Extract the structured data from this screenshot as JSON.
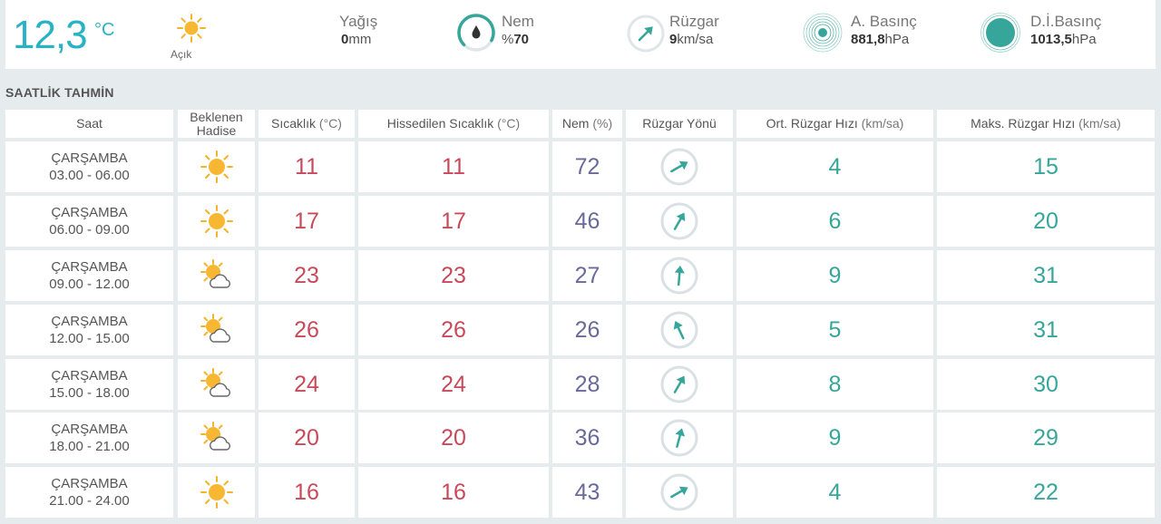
{
  "current": {
    "temperature": "12,3",
    "unit": "°C",
    "condition": "Açık",
    "condition_icon": "sun-icon",
    "precip": {
      "label": "Yağış",
      "value": "0",
      "unit": "mm"
    },
    "humidity": {
      "label": "Nem",
      "prefix": "%",
      "value": "70",
      "level": 0.7
    },
    "wind": {
      "label": "Rüzgar",
      "value": "9",
      "unit": "km/sa"
    },
    "pressure_a": {
      "label": "A. Basınç",
      "value": "881,8",
      "unit": "hPa"
    },
    "pressure_di": {
      "label": "D.İ.Basınç",
      "value": "1013,5",
      "unit": "hPa"
    }
  },
  "hourly": {
    "title": "SAATLİK TAHMİN",
    "headers": {
      "time": "Saat",
      "event_1": "Beklenen",
      "event_2": "Hadise",
      "temp": "Sıcaklık",
      "temp_unit": "(°C)",
      "feels": "Hissedilen Sıcaklık",
      "feels_unit": "(°C)",
      "humidity": "Nem",
      "humidity_unit": "(%)",
      "wind_dir": "Rüzgar Yönü",
      "avg_wind": "Ort. Rüzgar Hızı",
      "avg_wind_unit": "(km/sa)",
      "max_wind": "Maks. Rüzgar Hızı",
      "max_wind_unit": "(km/sa)"
    },
    "rows": [
      {
        "day": "ÇARŞAMBA",
        "range": "03.00 - 06.00",
        "icon": "sun-icon",
        "temp": "11",
        "feels": "11",
        "humidity": "72",
        "wind_dir_deg": 240,
        "avg_wind": "4",
        "max_wind": "15"
      },
      {
        "day": "ÇARŞAMBA",
        "range": "06.00 - 09.00",
        "icon": "sun-icon",
        "temp": "17",
        "feels": "17",
        "humidity": "46",
        "wind_dir_deg": 210,
        "avg_wind": "6",
        "max_wind": "20"
      },
      {
        "day": "ÇARŞAMBA",
        "range": "09.00 - 12.00",
        "icon": "partly-cloudy-icon",
        "temp": "23",
        "feels": "23",
        "humidity": "27",
        "wind_dir_deg": 185,
        "avg_wind": "9",
        "max_wind": "31"
      },
      {
        "day": "ÇARŞAMBA",
        "range": "12.00 - 15.00",
        "icon": "partly-cloudy-icon",
        "temp": "26",
        "feels": "26",
        "humidity": "26",
        "wind_dir_deg": 155,
        "avg_wind": "5",
        "max_wind": "31"
      },
      {
        "day": "ÇARŞAMBA",
        "range": "15.00 - 18.00",
        "icon": "partly-cloudy-icon",
        "temp": "24",
        "feels": "24",
        "humidity": "28",
        "wind_dir_deg": 210,
        "avg_wind": "8",
        "max_wind": "30"
      },
      {
        "day": "ÇARŞAMBA",
        "range": "18.00 - 21.00",
        "icon": "partly-cloudy-icon",
        "temp": "20",
        "feels": "20",
        "humidity": "36",
        "wind_dir_deg": 195,
        "avg_wind": "9",
        "max_wind": "29"
      },
      {
        "day": "ÇARŞAMBA",
        "range": "21.00 - 24.00",
        "icon": "sun-icon",
        "temp": "16",
        "feels": "16",
        "humidity": "43",
        "wind_dir_deg": 240,
        "avg_wind": "4",
        "max_wind": "22"
      }
    ]
  },
  "colors": {
    "teal": "#37a69a",
    "temp_blue": "#27b3c5",
    "temp_red": "#c84a5a",
    "humidity_purple": "#6a6a9a",
    "sun": "#f5b32a"
  }
}
